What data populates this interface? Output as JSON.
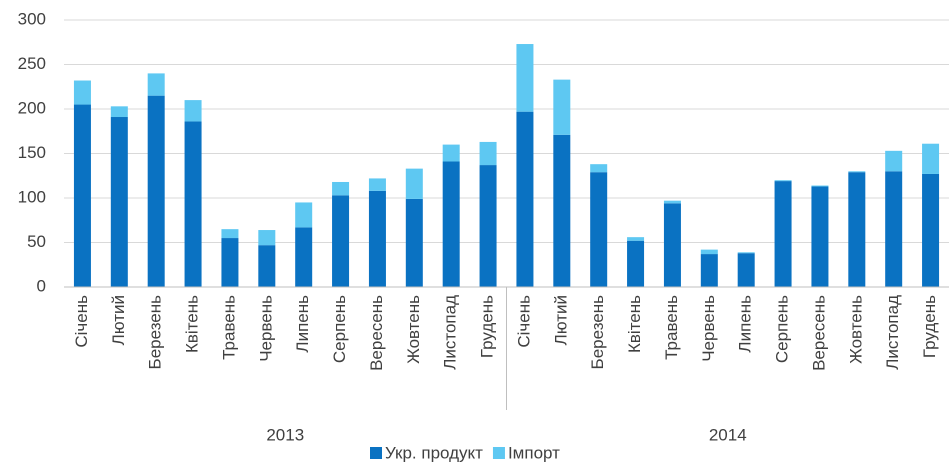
{
  "chart_data": {
    "type": "stacked_bar",
    "categories": [
      "Січень",
      "Лютий",
      "Березень",
      "Квітень",
      "Травень",
      "Червень",
      "Липень",
      "Серпень",
      "Вересень",
      "Жовтень",
      "Листопад",
      "Грудень",
      "Січень",
      "Лютий",
      "Березень",
      "Квітень",
      "Травень",
      "Червень",
      "Липень",
      "Серпень",
      "Вересень",
      "Жовтень",
      "Листопад",
      "Грудень"
    ],
    "groups": [
      "2013",
      "2014"
    ],
    "series": [
      {
        "name": "Укр. продукт",
        "color": "#0a72c2",
        "values": [
          205,
          191,
          215,
          186,
          55,
          47,
          67,
          103,
          108,
          99,
          141,
          137,
          197,
          171,
          129,
          52,
          94,
          37,
          38,
          119,
          113,
          129,
          130,
          127
        ]
      },
      {
        "name": "Імпорт",
        "color": "#5ec8f2",
        "values": [
          27,
          12,
          25,
          24,
          10,
          17,
          28,
          15,
          14,
          34,
          19,
          26,
          76,
          62,
          9,
          4,
          3,
          5,
          1,
          1,
          1,
          1,
          23,
          34
        ]
      }
    ],
    "ylim": [
      0,
      300
    ],
    "yticks": [
      0,
      50,
      100,
      150,
      200,
      250,
      300
    ],
    "grid": true,
    "legend": "bottom"
  }
}
